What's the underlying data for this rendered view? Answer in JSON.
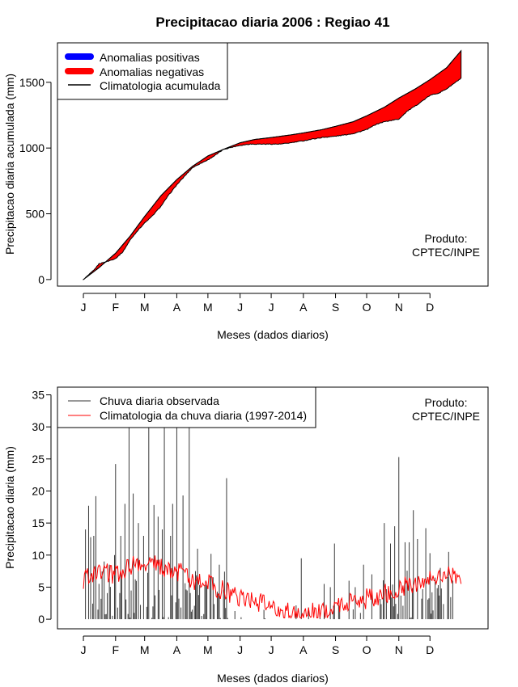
{
  "title": "Precipitacao diaria 2006 : Regiao 41",
  "product_label": [
    "Produto:",
    "CPTEC/INPE"
  ],
  "chart_data": [
    {
      "type": "area",
      "name": "accumulated",
      "ylabel": "Precipitacao diaria acumulada (mm)",
      "xlabel": "Meses (dados diarios)",
      "months": [
        "J",
        "F",
        "M",
        "A",
        "M",
        "J",
        "J",
        "A",
        "S",
        "O",
        "N",
        "D"
      ],
      "month_start_days": [
        0,
        31,
        59,
        90,
        120,
        151,
        181,
        212,
        243,
        273,
        304,
        334
      ],
      "yticks": [
        0,
        500,
        1000,
        1500
      ],
      "ylim": [
        -50,
        1800
      ],
      "xlim": [
        -25,
        390
      ],
      "legend": [
        {
          "label": "Anomalias positivas",
          "color": "#0000ff"
        },
        {
          "label": "Anomalias negativas",
          "color": "#ff0000"
        },
        {
          "label": "Climatologia acumulada",
          "color": "#000000"
        }
      ],
      "climatology_points": [
        [
          0,
          0
        ],
        [
          15,
          90
        ],
        [
          31,
          200
        ],
        [
          45,
          330
        ],
        [
          59,
          480
        ],
        [
          75,
          640
        ],
        [
          90,
          760
        ],
        [
          105,
          860
        ],
        [
          120,
          940
        ],
        [
          135,
          990
        ],
        [
          151,
          1040
        ],
        [
          165,
          1065
        ],
        [
          181,
          1080
        ],
        [
          200,
          1100
        ],
        [
          212,
          1115
        ],
        [
          230,
          1140
        ],
        [
          243,
          1165
        ],
        [
          260,
          1200
        ],
        [
          273,
          1245
        ],
        [
          290,
          1310
        ],
        [
          304,
          1380
        ],
        [
          320,
          1450
        ],
        [
          334,
          1520
        ],
        [
          350,
          1610
        ],
        [
          364,
          1740
        ]
      ],
      "observed_points": [
        [
          0,
          0
        ],
        [
          10,
          70
        ],
        [
          15,
          120
        ],
        [
          24,
          140
        ],
        [
          31,
          160
        ],
        [
          38,
          210
        ],
        [
          45,
          300
        ],
        [
          52,
          370
        ],
        [
          59,
          430
        ],
        [
          66,
          480
        ],
        [
          75,
          560
        ],
        [
          82,
          640
        ],
        [
          90,
          720
        ],
        [
          98,
          790
        ],
        [
          105,
          850
        ],
        [
          112,
          880
        ],
        [
          120,
          910
        ],
        [
          128,
          950
        ],
        [
          135,
          990
        ],
        [
          145,
          1010
        ],
        [
          151,
          1020
        ],
        [
          160,
          1030
        ],
        [
          170,
          1030
        ],
        [
          181,
          1030
        ],
        [
          190,
          1030
        ],
        [
          200,
          1040
        ],
        [
          212,
          1055
        ],
        [
          222,
          1070
        ],
        [
          230,
          1080
        ],
        [
          243,
          1090
        ],
        [
          252,
          1100
        ],
        [
          260,
          1110
        ],
        [
          273,
          1140
        ],
        [
          282,
          1180
        ],
        [
          290,
          1200
        ],
        [
          304,
          1220
        ],
        [
          312,
          1280
        ],
        [
          320,
          1320
        ],
        [
          334,
          1400
        ],
        [
          343,
          1420
        ],
        [
          350,
          1450
        ],
        [
          364,
          1530
        ]
      ]
    },
    {
      "type": "bar",
      "name": "daily",
      "ylabel": "Precipitacao diaria (mm)",
      "xlabel": "Meses (dados diarios)",
      "months": [
        "J",
        "F",
        "M",
        "A",
        "M",
        "J",
        "J",
        "A",
        "S",
        "O",
        "N",
        "D"
      ],
      "month_start_days": [
        0,
        31,
        59,
        90,
        120,
        151,
        181,
        212,
        243,
        273,
        304,
        334
      ],
      "yticks": [
        0,
        5,
        10,
        15,
        20,
        25,
        30,
        35
      ],
      "ylim": [
        -1.5,
        36.2
      ],
      "xlim": [
        -25,
        390
      ],
      "legend": [
        {
          "label": "Chuva diaria observada",
          "color": "#333333"
        },
        {
          "label": "Climatologia da chuva diaria (1997-2014)",
          "color": "#ff0000"
        }
      ],
      "observed_peaks": [
        [
          2,
          14
        ],
        [
          5,
          17.7
        ],
        [
          7,
          12.8
        ],
        [
          10,
          13
        ],
        [
          12,
          19.2
        ],
        [
          20,
          9
        ],
        [
          25,
          8.5
        ],
        [
          30,
          10
        ],
        [
          31,
          24.2
        ],
        [
          36,
          13
        ],
        [
          40,
          18
        ],
        [
          44,
          30
        ],
        [
          48,
          19.6
        ],
        [
          53,
          15
        ],
        [
          58,
          13
        ],
        [
          63,
          30
        ],
        [
          68,
          17.8
        ],
        [
          72,
          16
        ],
        [
          76,
          14
        ],
        [
          78,
          30
        ],
        [
          84,
          13
        ],
        [
          86,
          18
        ],
        [
          90,
          30
        ],
        [
          96,
          19.3
        ],
        [
          102,
          30
        ],
        [
          110,
          11
        ],
        [
          123,
          10.2
        ],
        [
          131,
          8.5
        ],
        [
          138,
          22
        ],
        [
          210,
          9.5
        ],
        [
          232,
          5.5
        ],
        [
          238,
          5
        ],
        [
          242,
          11.8
        ],
        [
          256,
          6
        ],
        [
          262,
          5
        ],
        [
          270,
          8.5
        ],
        [
          278,
          7
        ],
        [
          290,
          15
        ],
        [
          296,
          11.8
        ],
        [
          300,
          14.5
        ],
        [
          304,
          25.3
        ],
        [
          310,
          12
        ],
        [
          314,
          12
        ],
        [
          318,
          17
        ],
        [
          322,
          12.5
        ],
        [
          330,
          14.2
        ],
        [
          334,
          10.3
        ],
        [
          344,
          8
        ],
        [
          352,
          10.5
        ]
      ],
      "climatology_levels": [
        [
          0,
          6
        ],
        [
          15,
          8
        ],
        [
          31,
          6.8
        ],
        [
          45,
          8.5
        ],
        [
          59,
          9
        ],
        [
          75,
          8.2
        ],
        [
          90,
          7.5
        ],
        [
          105,
          6.2
        ],
        [
          120,
          5.5
        ],
        [
          140,
          4.2
        ],
        [
          151,
          3.5
        ],
        [
          165,
          2.8
        ],
        [
          181,
          1.8
        ],
        [
          200,
          1
        ],
        [
          212,
          0.8
        ],
        [
          230,
          1.2
        ],
        [
          243,
          2
        ],
        [
          260,
          2.8
        ],
        [
          273,
          3.2
        ],
        [
          290,
          4
        ],
        [
          304,
          5
        ],
        [
          320,
          5.8
        ],
        [
          334,
          6.2
        ],
        [
          350,
          6.8
        ],
        [
          364,
          7
        ]
      ]
    }
  ]
}
